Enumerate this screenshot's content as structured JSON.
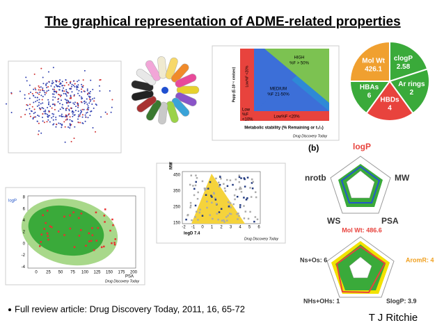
{
  "header": {
    "title": "The graphical representation of ADME-related properties"
  },
  "pie": {
    "segments": [
      "Mol Wt",
      "clogP",
      "Ar rings",
      "HBDs",
      "HBAs"
    ],
    "values": [
      "426.1",
      "2.58",
      "2",
      "4",
      "6"
    ]
  },
  "triangle_chart": {
    "high": [
      "HIGH",
      "%F > 50%"
    ],
    "medium": [
      "MEDIUM",
      "%F 21-50%"
    ],
    "low_left": "Low%F <20%",
    "low_bottom": "Low%F <20%",
    "low_corner": [
      "Low",
      "%F",
      "<10%"
    ],
    "y_label": "Papp (E-10⁻⁶ cm/sec)",
    "x_label": "Metabolic stability (% Remaining or t₁/₂)",
    "source": "Drug Discovery Today"
  },
  "radar_b": {
    "tag": "(b)",
    "axes": [
      "logP",
      "MW",
      "PSA",
      "WS",
      "nrotb"
    ]
  },
  "radar_2": {
    "title": "Mol Wt: 486.6",
    "axes": [
      "AromR: 4",
      "SlogP: 3.9",
      "NHs+OHs: 1",
      "Ns+Os: 6"
    ]
  },
  "ellipse_plot": {
    "y_label": "logP",
    "x_label": "PSA",
    "yticks": [
      "8",
      "6",
      "4",
      "2",
      "0",
      "-2",
      "-4"
    ],
    "xticks": [
      "0",
      "25",
      "50",
      "75",
      "100",
      "125",
      "150",
      "175",
      "200"
    ],
    "source": "Drug Discovery Today"
  },
  "mw_plot": {
    "y_label": "MW",
    "x_label": "logD 7.4",
    "yticks": [
      "450",
      "350",
      "250",
      "150"
    ],
    "xticks": [
      "-2",
      "-1",
      "0",
      "1",
      "2",
      "3",
      "4",
      "5",
      "6"
    ],
    "source": "Drug Discovery Today"
  },
  "footer": {
    "reference": "Full review article: Drug Discovery Today, 2011, 16, 65-72",
    "author": "T J Ritchie"
  }
}
